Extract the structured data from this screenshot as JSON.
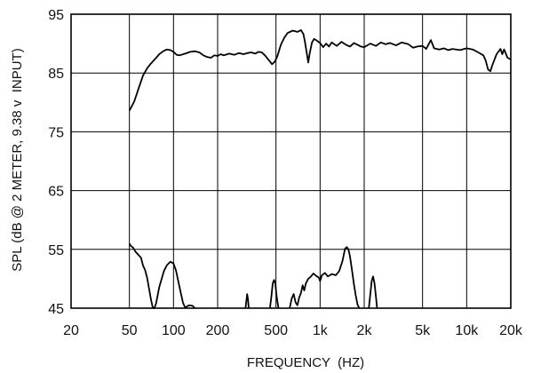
{
  "chart_data": {
    "type": "line",
    "xlabel": "FREQUENCY  (HZ)",
    "ylabel": "SPL (dB @ 2 METER, 9.38 v  INPUT)",
    "xscale": "log",
    "xlim": [
      20,
      20000
    ],
    "ylim": [
      45,
      95
    ],
    "grid": true,
    "x_ticks": [
      {
        "value": 20,
        "label": "20"
      },
      {
        "value": 50,
        "label": "50"
      },
      {
        "value": 100,
        "label": "100"
      },
      {
        "value": 200,
        "label": "200"
      },
      {
        "value": 500,
        "label": "500"
      },
      {
        "value": 1000,
        "label": "1k"
      },
      {
        "value": 2000,
        "label": "2k"
      },
      {
        "value": 5000,
        "label": "5k"
      },
      {
        "value": 10000,
        "label": "10k"
      },
      {
        "value": 20000,
        "label": "20k"
      }
    ],
    "y_ticks": [
      {
        "value": 95,
        "label": "95"
      },
      {
        "value": 85,
        "label": "85"
      },
      {
        "value": 75,
        "label": "75"
      },
      {
        "value": 65,
        "label": "65"
      },
      {
        "value": 55,
        "label": "55"
      },
      {
        "value": 45,
        "label": "45"
      }
    ],
    "series": [
      {
        "color": "#000000",
        "points": [
          [
            50,
            78.6
          ],
          [
            54,
            80.2
          ],
          [
            58,
            82.5
          ],
          [
            62,
            84.6
          ],
          [
            66,
            85.8
          ],
          [
            70,
            86.6
          ],
          [
            75,
            87.4
          ],
          [
            80,
            88.2
          ],
          [
            85,
            88.7
          ],
          [
            90,
            89.0
          ],
          [
            95,
            88.9
          ],
          [
            100,
            88.6
          ],
          [
            105,
            88.1
          ],
          [
            110,
            88.0
          ],
          [
            120,
            88.3
          ],
          [
            130,
            88.6
          ],
          [
            140,
            88.7
          ],
          [
            150,
            88.5
          ],
          [
            160,
            88.0
          ],
          [
            170,
            87.7
          ],
          [
            180,
            87.6
          ],
          [
            190,
            88.0
          ],
          [
            200,
            87.9
          ],
          [
            210,
            88.2
          ],
          [
            220,
            88.0
          ],
          [
            240,
            88.3
          ],
          [
            260,
            88.1
          ],
          [
            280,
            88.4
          ],
          [
            300,
            88.2
          ],
          [
            320,
            88.4
          ],
          [
            340,
            88.5
          ],
          [
            360,
            88.3
          ],
          [
            380,
            88.6
          ],
          [
            400,
            88.5
          ],
          [
            420,
            88.0
          ],
          [
            450,
            87.1
          ],
          [
            470,
            86.5
          ],
          [
            490,
            86.9
          ],
          [
            510,
            87.8
          ],
          [
            540,
            89.8
          ],
          [
            570,
            91.0
          ],
          [
            600,
            91.8
          ],
          [
            650,
            92.2
          ],
          [
            700,
            92.0
          ],
          [
            740,
            92.3
          ],
          [
            770,
            91.6
          ],
          [
            790,
            90.2
          ],
          [
            810,
            88.5
          ],
          [
            830,
            86.8
          ],
          [
            850,
            88.4
          ],
          [
            880,
            90.2
          ],
          [
            910,
            90.8
          ],
          [
            950,
            90.5
          ],
          [
            1000,
            90.1
          ],
          [
            1050,
            89.4
          ],
          [
            1100,
            90.0
          ],
          [
            1150,
            89.5
          ],
          [
            1200,
            90.2
          ],
          [
            1300,
            89.6
          ],
          [
            1400,
            90.3
          ],
          [
            1500,
            89.8
          ],
          [
            1600,
            89.5
          ],
          [
            1700,
            90.1
          ],
          [
            1800,
            89.8
          ],
          [
            1900,
            89.5
          ],
          [
            2000,
            89.4
          ],
          [
            2200,
            90.0
          ],
          [
            2400,
            89.6
          ],
          [
            2600,
            90.2
          ],
          [
            2800,
            89.9
          ],
          [
            3000,
            90.1
          ],
          [
            3300,
            89.7
          ],
          [
            3600,
            90.2
          ],
          [
            4000,
            89.9
          ],
          [
            4300,
            89.3
          ],
          [
            4600,
            89.5
          ],
          [
            5000,
            89.6
          ],
          [
            5300,
            89.1
          ],
          [
            5700,
            90.6
          ],
          [
            6000,
            89.2
          ],
          [
            6500,
            89.0
          ],
          [
            7000,
            89.2
          ],
          [
            7500,
            88.9
          ],
          [
            8000,
            89.1
          ],
          [
            9000,
            88.9
          ],
          [
            10000,
            89.2
          ],
          [
            11000,
            89.0
          ],
          [
            12000,
            88.5
          ],
          [
            13000,
            88.0
          ],
          [
            13500,
            87.1
          ],
          [
            14000,
            85.6
          ],
          [
            14500,
            85.3
          ],
          [
            15000,
            86.4
          ],
          [
            16000,
            88.2
          ],
          [
            17000,
            89.1
          ],
          [
            17500,
            88.2
          ],
          [
            18000,
            89.0
          ],
          [
            19000,
            87.6
          ],
          [
            20000,
            87.3
          ]
        ]
      },
      {
        "color": "#000000",
        "points": [
          [
            50,
            56.0
          ],
          [
            51,
            55.6
          ],
          [
            53,
            55.3
          ],
          [
            55,
            54.6
          ],
          [
            57,
            54.2
          ],
          [
            60,
            53.6
          ],
          [
            62,
            52.2
          ],
          [
            64,
            51.5
          ],
          [
            66,
            50.2
          ],
          [
            68,
            48.4
          ],
          [
            70,
            46.6
          ],
          [
            72,
            45.2
          ],
          [
            74,
            45.0
          ],
          [
            76,
            45.8
          ],
          [
            78,
            47.2
          ],
          [
            80,
            48.6
          ],
          [
            83,
            50.0
          ],
          [
            86,
            51.3
          ],
          [
            90,
            52.3
          ],
          [
            95,
            52.9
          ],
          [
            100,
            52.6
          ],
          [
            104,
            51.4
          ],
          [
            108,
            49.5
          ],
          [
            112,
            47.6
          ],
          [
            116,
            45.9
          ],
          [
            120,
            45.1
          ],
          [
            128,
            45.5
          ],
          [
            135,
            45.4
          ],
          [
            140,
            45.0
          ]
        ]
      },
      {
        "color": "#000000",
        "points": [
          [
            310,
            45.0
          ],
          [
            314,
            46.2
          ],
          [
            318,
            47.4
          ],
          [
            322,
            46.6
          ],
          [
            326,
            45.0
          ]
        ]
      },
      {
        "color": "#000000",
        "points": [
          [
            455,
            45.0
          ],
          [
            465,
            47.0
          ],
          [
            475,
            49.2
          ],
          [
            485,
            49.8
          ],
          [
            495,
            49.2
          ],
          [
            505,
            47.0
          ],
          [
            520,
            45.0
          ]
        ]
      },
      {
        "color": "#000000",
        "points": [
          [
            620,
            45.0
          ],
          [
            640,
            46.6
          ],
          [
            660,
            47.4
          ],
          [
            680,
            46.0
          ],
          [
            700,
            45.5
          ],
          [
            720,
            46.8
          ],
          [
            740,
            47.6
          ],
          [
            760,
            48.9
          ],
          [
            780,
            48.0
          ],
          [
            800,
            49.2
          ],
          [
            830,
            50.0
          ],
          [
            860,
            50.3
          ],
          [
            900,
            50.9
          ],
          [
            940,
            50.5
          ],
          [
            980,
            50.2
          ],
          [
            1000,
            49.6
          ],
          [
            1030,
            50.6
          ],
          [
            1080,
            51.0
          ],
          [
            1130,
            50.4
          ],
          [
            1200,
            50.8
          ],
          [
            1280,
            50.6
          ],
          [
            1350,
            51.3
          ],
          [
            1420,
            53.0
          ],
          [
            1480,
            55.1
          ],
          [
            1520,
            55.4
          ],
          [
            1560,
            55.0
          ],
          [
            1600,
            53.8
          ],
          [
            1650,
            51.5
          ],
          [
            1700,
            49.1
          ],
          [
            1750,
            47.2
          ],
          [
            1800,
            45.6
          ],
          [
            1850,
            45.0
          ]
        ]
      },
      {
        "color": "#000000",
        "points": [
          [
            2150,
            45.0
          ],
          [
            2200,
            47.3
          ],
          [
            2250,
            49.6
          ],
          [
            2300,
            50.4
          ],
          [
            2350,
            49.2
          ],
          [
            2400,
            47.1
          ],
          [
            2450,
            45.0
          ]
        ]
      }
    ]
  }
}
